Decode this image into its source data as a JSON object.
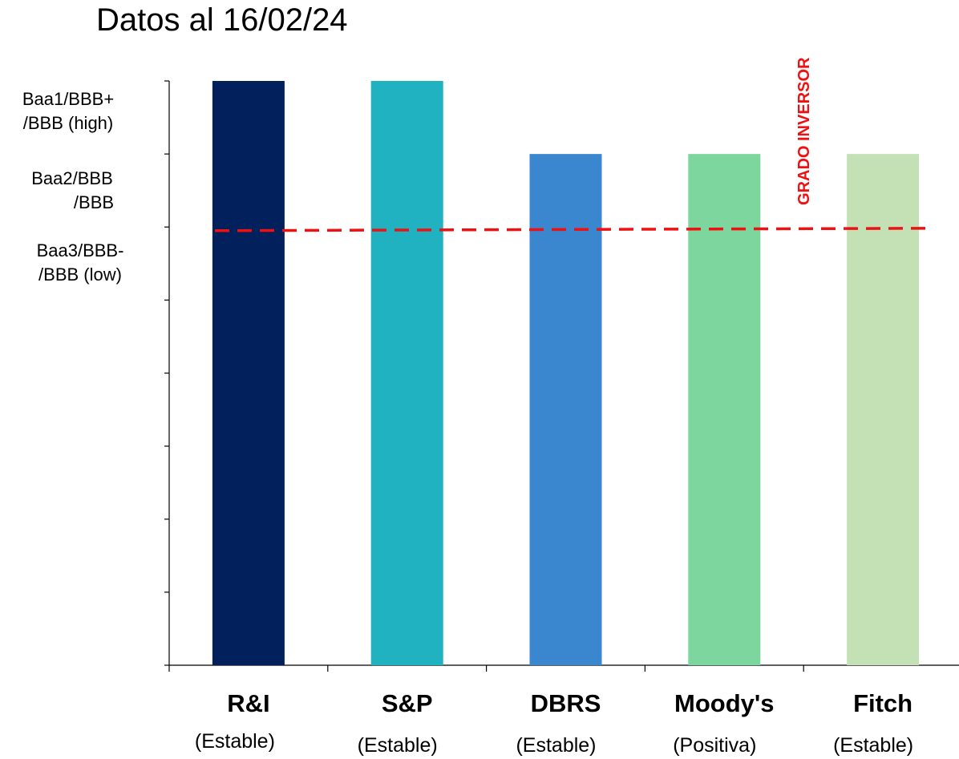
{
  "chart_data": {
    "type": "bar",
    "title": "Datos al 16/02/24",
    "categories": [
      "R&I",
      "S&P",
      "DBRS",
      "Moody's",
      "Fitch"
    ],
    "outlooks": [
      "(Estable)",
      "(Estable)",
      "(Estable)",
      "(Positiva)",
      "(Estable)"
    ],
    "values": [
      8,
      8,
      7,
      7,
      7
    ],
    "ylim": [
      0,
      8
    ],
    "colors": [
      "#02205c",
      "#20b2c0",
      "#3a86cf",
      "#7dd69d",
      "#c4e1b6"
    ],
    "y_tick_labels": [
      {
        "value": 8,
        "lines": [
          "Baa1/BBB+",
          "/BBB (high)"
        ]
      },
      {
        "value": 7,
        "lines": [
          "Baa2/BBB",
          "/BBB"
        ]
      },
      {
        "value": 6,
        "lines": [
          "Baa3/BBB-",
          "/BBB (low)"
        ]
      }
    ],
    "threshold": {
      "value": 5.95,
      "label": "GRADO INVERSOR",
      "color": "#ee1111"
    },
    "grid": false
  }
}
